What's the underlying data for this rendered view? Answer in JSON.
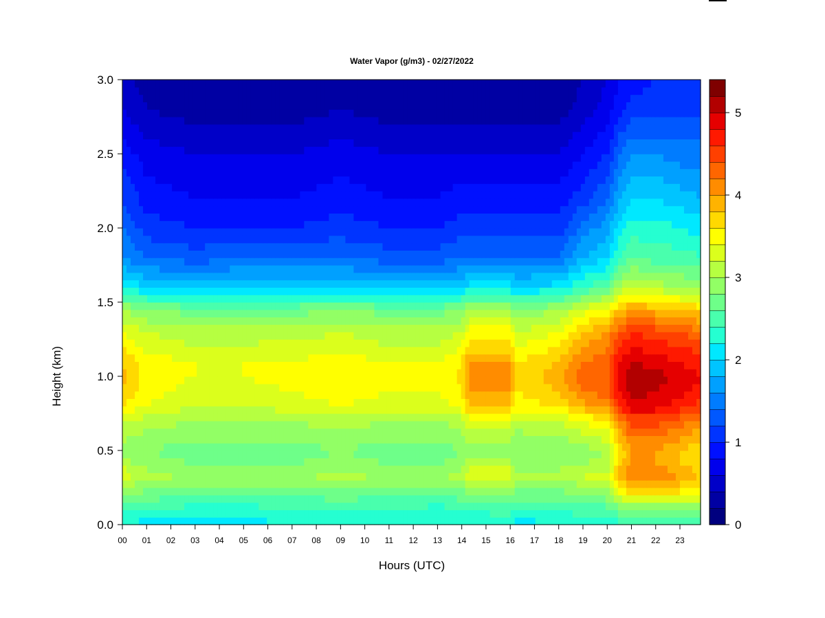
{
  "chart_data": {
    "type": "heatmap",
    "title": "Water Vapor (g/m3) - 02/27/2022",
    "xlabel": "Hours (UTC)",
    "ylabel": "Height (km)",
    "xlim": [
      0,
      24
    ],
    "ylim": [
      0.0,
      3.0
    ],
    "x_ticks": [
      "00",
      "01",
      "02",
      "03",
      "04",
      "05",
      "06",
      "07",
      "08",
      "09",
      "10",
      "11",
      "12",
      "13",
      "14",
      "15",
      "16",
      "17",
      "18",
      "19",
      "20",
      "21",
      "22",
      "23"
    ],
    "y_ticks": [
      "0.0",
      "0.5",
      "1.0",
      "1.5",
      "2.0",
      "2.5",
      "3.0"
    ],
    "colorbar": {
      "range": [
        0,
        5.4
      ],
      "ticks": [
        "0",
        "1",
        "2",
        "3",
        "4",
        "5"
      ],
      "colors": [
        "#00007f",
        "#0000a3",
        "#0000c8",
        "#0000ec",
        "#0010ff",
        "#0034ff",
        "#0058ff",
        "#007cff",
        "#00a0ff",
        "#00c4ff",
        "#00e8ff",
        "#25ffd1",
        "#49ffad",
        "#6eff89",
        "#92ff65",
        "#b6ff41",
        "#dbff1c",
        "#ffff00",
        "#ffd900",
        "#ffb300",
        "#ff8c00",
        "#ff6600",
        "#ff4000",
        "#ff1900",
        "#e50000",
        "#b20000",
        "#7f0000"
      ]
    },
    "heights_km": [
      0.0,
      0.1,
      0.2,
      0.3,
      0.35,
      0.4,
      0.5,
      0.7,
      0.8,
      0.9,
      1.0,
      1.1,
      1.2,
      1.3,
      1.45,
      1.6,
      1.8,
      2.0,
      2.2,
      2.5,
      2.8,
      3.0
    ],
    "hours_utc": [
      0,
      1,
      3,
      5,
      7,
      9,
      11,
      12,
      13,
      14,
      14.3,
      16,
      16.2,
      18,
      19,
      20,
      20.5,
      21,
      22,
      23,
      24
    ],
    "values": [
      [
        2.2,
        2.1,
        2.1,
        2.1,
        2.2,
        2.2,
        2.2,
        2.2,
        2.2,
        2.2,
        2.2,
        2.3,
        2.1,
        2.2,
        2.3,
        2.2,
        2.3,
        2.3,
        2.4,
        2.4,
        2.4
      ],
      [
        2.4,
        2.4,
        2.3,
        2.3,
        2.4,
        2.4,
        2.4,
        2.4,
        2.3,
        2.4,
        2.4,
        2.5,
        2.3,
        2.4,
        2.5,
        2.5,
        2.7,
        2.8,
        2.8,
        2.8,
        2.8
      ],
      [
        2.8,
        2.7,
        2.6,
        2.6,
        2.6,
        2.7,
        2.6,
        2.6,
        2.6,
        2.7,
        2.8,
        2.8,
        2.7,
        2.7,
        2.8,
        2.9,
        3.3,
        3.6,
        3.6,
        3.5,
        3.4
      ],
      [
        3.2,
        3.0,
        2.9,
        2.9,
        2.9,
        3.0,
        2.9,
        2.9,
        2.9,
        3.0,
        3.2,
        3.2,
        3.0,
        3.0,
        3.1,
        3.2,
        3.8,
        4.1,
        4.1,
        3.9,
        3.7
      ],
      [
        3.4,
        3.1,
        3.0,
        3.0,
        3.0,
        3.1,
        3.0,
        3.0,
        3.0,
        3.1,
        3.3,
        3.3,
        3.1,
        3.1,
        3.3,
        3.2,
        3.9,
        4.2,
        4.2,
        4.0,
        3.8
      ],
      [
        3.1,
        2.9,
        2.8,
        2.8,
        2.8,
        2.9,
        2.8,
        2.8,
        2.8,
        2.9,
        3.1,
        3.1,
        2.9,
        2.9,
        3.0,
        3.1,
        3.7,
        4.0,
        4.0,
        3.8,
        3.6
      ],
      [
        2.9,
        2.8,
        2.7,
        2.7,
        2.7,
        2.8,
        2.7,
        2.7,
        2.7,
        2.8,
        2.9,
        2.9,
        2.8,
        2.8,
        2.9,
        3.0,
        3.6,
        4.0,
        4.0,
        3.8,
        3.6
      ],
      [
        3.2,
        3.1,
        3.0,
        3.0,
        3.0,
        3.1,
        3.0,
        3.0,
        3.0,
        3.1,
        3.3,
        3.3,
        3.1,
        3.2,
        3.4,
        3.6,
        4.1,
        4.5,
        4.5,
        4.3,
        4.1
      ],
      [
        3.6,
        3.4,
        3.2,
        3.2,
        3.3,
        3.4,
        3.3,
        3.3,
        3.3,
        3.5,
        3.8,
        3.8,
        3.5,
        3.6,
        3.9,
        4.1,
        4.6,
        4.9,
        4.9,
        4.7,
        4.5
      ],
      [
        3.8,
        3.5,
        3.3,
        3.3,
        3.4,
        3.5,
        3.4,
        3.4,
        3.4,
        3.6,
        4.0,
        4.0,
        3.6,
        3.8,
        4.2,
        4.3,
        4.8,
        5.1,
        5.0,
        4.9,
        4.7
      ],
      [
        3.9,
        3.5,
        3.4,
        3.4,
        3.5,
        3.6,
        3.5,
        3.5,
        3.4,
        3.7,
        4.1,
        4.1,
        3.7,
        3.9,
        4.3,
        4.4,
        4.9,
        5.2,
        5.1,
        4.9,
        4.8
      ],
      [
        3.8,
        3.5,
        3.4,
        3.4,
        3.4,
        3.5,
        3.4,
        3.4,
        3.4,
        3.6,
        4.0,
        4.0,
        3.6,
        3.8,
        4.2,
        4.3,
        4.8,
        5.0,
        4.9,
        4.8,
        4.7
      ],
      [
        3.6,
        3.3,
        3.2,
        3.2,
        3.3,
        3.3,
        3.2,
        3.2,
        3.2,
        3.4,
        3.7,
        3.7,
        3.4,
        3.6,
        4.0,
        4.2,
        4.6,
        4.8,
        4.7,
        4.6,
        4.5
      ],
      [
        3.4,
        3.2,
        3.1,
        3.1,
        3.1,
        3.2,
        3.1,
        3.1,
        3.1,
        3.2,
        3.5,
        3.5,
        3.2,
        3.4,
        3.8,
        4.0,
        4.4,
        4.6,
        4.5,
        4.4,
        4.2
      ],
      [
        3.0,
        2.8,
        2.7,
        2.7,
        2.7,
        2.8,
        2.7,
        2.7,
        2.7,
        2.8,
        3.0,
        3.0,
        2.8,
        3.0,
        3.3,
        3.5,
        3.8,
        4.0,
        3.9,
        3.8,
        3.7
      ],
      [
        2.2,
        2.0,
        1.9,
        2.0,
        2.0,
        2.0,
        1.9,
        1.9,
        1.9,
        2.0,
        2.1,
        2.1,
        2.0,
        2.1,
        2.4,
        2.6,
        3.0,
        3.2,
        3.1,
        3.0,
        2.9
      ],
      [
        1.6,
        1.4,
        1.3,
        1.4,
        1.4,
        1.4,
        1.3,
        1.3,
        1.3,
        1.4,
        1.4,
        1.4,
        1.4,
        1.4,
        1.8,
        2.0,
        2.4,
        2.6,
        2.5,
        2.5,
        2.4
      ],
      [
        1.4,
        1.1,
        1.0,
        1.0,
        1.0,
        1.1,
        1.0,
        1.0,
        1.0,
        1.1,
        1.1,
        1.1,
        1.1,
        1.1,
        1.5,
        1.7,
        2.1,
        2.3,
        2.3,
        2.2,
        2.1
      ],
      [
        1.2,
        0.9,
        0.8,
        0.8,
        0.8,
        0.9,
        0.8,
        0.8,
        0.8,
        0.9,
        0.9,
        0.9,
        0.9,
        0.9,
        1.1,
        1.4,
        1.8,
        2.0,
        2.0,
        1.9,
        1.8
      ],
      [
        0.9,
        0.7,
        0.6,
        0.6,
        0.6,
        0.7,
        0.6,
        0.6,
        0.6,
        0.6,
        0.6,
        0.6,
        0.6,
        0.6,
        0.8,
        1.0,
        1.4,
        1.6,
        1.6,
        1.5,
        1.5
      ],
      [
        0.6,
        0.4,
        0.3,
        0.3,
        0.3,
        0.4,
        0.3,
        0.3,
        0.3,
        0.3,
        0.3,
        0.3,
        0.3,
        0.3,
        0.5,
        0.7,
        0.9,
        1.1,
        1.1,
        1.1,
        1.1
      ],
      [
        0.5,
        0.3,
        0.2,
        0.2,
        0.2,
        0.3,
        0.2,
        0.2,
        0.2,
        0.2,
        0.2,
        0.2,
        0.2,
        0.2,
        0.4,
        0.6,
        0.8,
        0.9,
        1.0,
        1.0,
        1.0
      ]
    ]
  }
}
